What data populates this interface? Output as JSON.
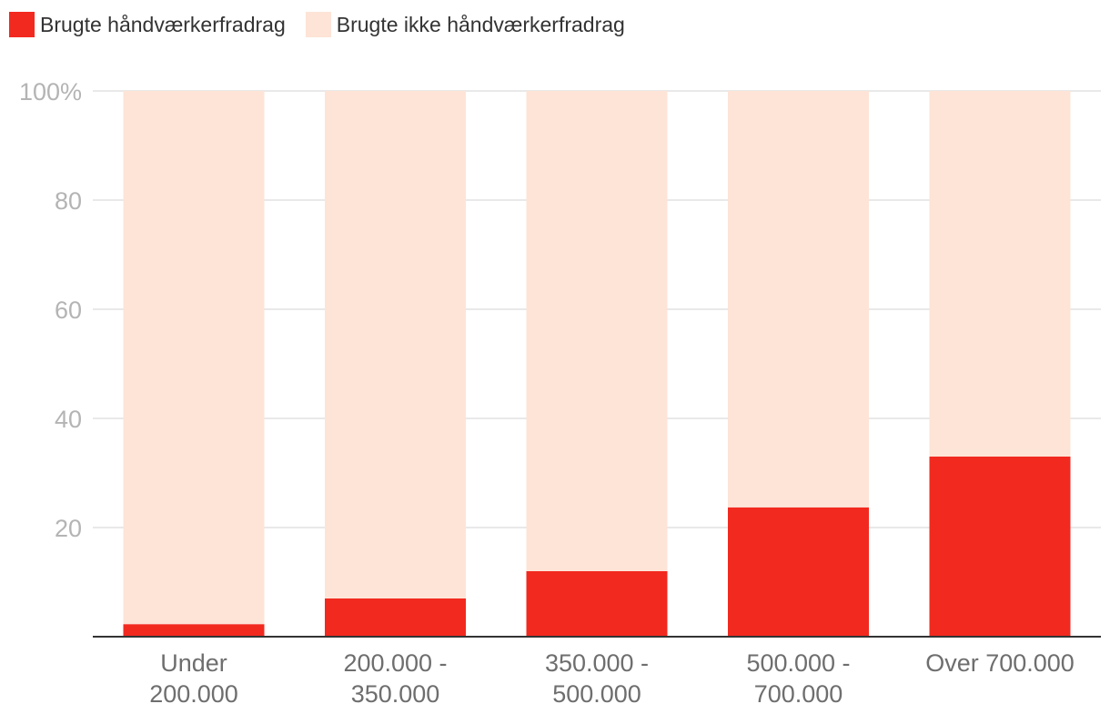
{
  "colors": {
    "used": "#f2291f",
    "not_used": "#fde4d7",
    "grid": "#e2e2e2",
    "axis": "#333333"
  },
  "legend": {
    "used_label": "Brugte håndværkerfradrag",
    "not_used_label": "Brugte ikke håndværkerfradrag"
  },
  "chart_data": {
    "type": "bar",
    "stacked": true,
    "categories": [
      [
        "Under",
        "200.000"
      ],
      [
        "200.000 -",
        "350.000"
      ],
      [
        "350.000 -",
        "500.000"
      ],
      [
        "500.000 -",
        "700.000"
      ],
      [
        "Over 700.000"
      ]
    ],
    "series": [
      {
        "name": "Brugte håndværkerfradrag",
        "color": "#f2291f",
        "values": [
          2.3,
          7,
          12,
          23.7,
          33
        ]
      },
      {
        "name": "Brugte ikke håndværkerfradrag",
        "color": "#fde4d7",
        "values": [
          97.7,
          93,
          88,
          76.3,
          67
        ]
      }
    ],
    "yticks": [
      "20",
      "40",
      "60",
      "80",
      "100%"
    ],
    "ytick_values": [
      20,
      40,
      60,
      80,
      100
    ],
    "ylim": [
      0,
      100
    ],
    "grid": true,
    "legend_position": "top-left"
  }
}
